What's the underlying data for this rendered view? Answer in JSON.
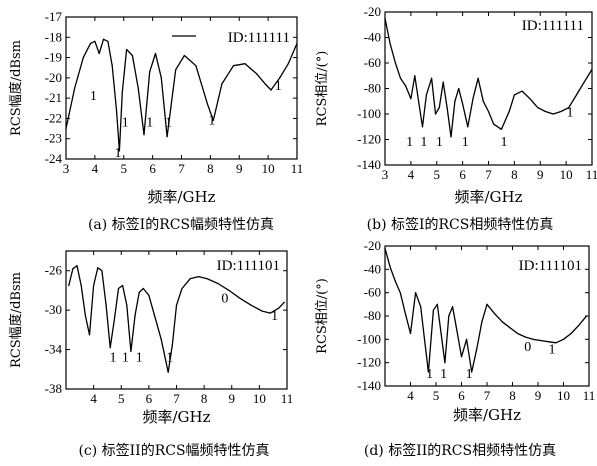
{
  "chart_data": [
    {
      "type": "line",
      "caption": "(a) 标签I的RCS幅频特性仿真",
      "id_label": "ID:111111",
      "legend_line": true,
      "xlabel": "频率/GHz",
      "ylabel": "RCS幅度/dBsm",
      "xlim": [
        3,
        11
      ],
      "ylim": [
        -24,
        -17
      ],
      "xticks": [
        "3",
        "4",
        "5",
        "6",
        "7",
        "8",
        "9",
        "10",
        "11"
      ],
      "yticks": [
        "-24",
        "-23",
        "-22",
        "-21",
        "-20",
        "-19",
        "-18",
        "-17"
      ],
      "series": [
        {
          "x": [
            3.0,
            3.3,
            3.6,
            3.85,
            4.0,
            4.15,
            4.3,
            4.45,
            4.6,
            4.75,
            4.85,
            4.95,
            5.1,
            5.3,
            5.5,
            5.7,
            5.9,
            6.1,
            6.3,
            6.5,
            6.8,
            7.1,
            7.5,
            7.9,
            8.1,
            8.4,
            8.8,
            9.2,
            9.6,
            9.9,
            10.1,
            10.4,
            10.7,
            11.0
          ],
          "y": [
            -22.5,
            -20.5,
            -19.0,
            -18.3,
            -18.2,
            -18.8,
            -18.1,
            -18.2,
            -19.4,
            -21.6,
            -23.6,
            -20.7,
            -18.6,
            -18.9,
            -20.5,
            -22.8,
            -19.7,
            -18.8,
            -20.0,
            -22.9,
            -19.6,
            -18.9,
            -19.4,
            -21.3,
            -22.1,
            -20.3,
            -19.4,
            -19.3,
            -19.8,
            -20.3,
            -20.6,
            -20.0,
            -19.3,
            -18.3
          ]
        }
      ],
      "annotations": [
        {
          "text": "1",
          "x": 3.95,
          "y": -21.1
        },
        {
          "text": "1",
          "x": 4.8,
          "y": -23.9
        },
        {
          "text": "1",
          "x": 5.05,
          "y": -22.4
        },
        {
          "text": "1",
          "x": 5.9,
          "y": -22.4
        },
        {
          "text": "1",
          "x": 6.55,
          "y": -22.4
        },
        {
          "text": "1",
          "x": 8.05,
          "y": -22.3
        },
        {
          "text": "1",
          "x": 10.35,
          "y": -20.6
        }
      ]
    },
    {
      "type": "line",
      "caption": "(b) 标签I的RCS相频特性仿真",
      "id_label": "ID:111111",
      "legend_line": false,
      "xlabel": "频率/GHz",
      "ylabel": "RCS相位/(°)",
      "xlim": [
        3,
        11
      ],
      "ylim": [
        -140,
        -20
      ],
      "xticks": [
        "3",
        "4",
        "5",
        "6",
        "7",
        "8",
        "9",
        "10",
        "11"
      ],
      "yticks": [
        "-140",
        "-120",
        "-100",
        "-80",
        "-60",
        "-40",
        "-20"
      ],
      "series": [
        {
          "x": [
            3.0,
            3.2,
            3.4,
            3.6,
            3.8,
            4.0,
            4.15,
            4.3,
            4.45,
            4.6,
            4.8,
            4.95,
            5.1,
            5.25,
            5.4,
            5.55,
            5.7,
            5.85,
            6.0,
            6.2,
            6.4,
            6.6,
            6.8,
            7.0,
            7.2,
            7.5,
            7.8,
            8.0,
            8.3,
            8.6,
            8.9,
            9.2,
            9.5,
            9.8,
            10.1,
            10.4,
            10.7,
            11.0
          ],
          "y": [
            -25,
            -45,
            -60,
            -72,
            -78,
            -88,
            -70,
            -90,
            -110,
            -85,
            -72,
            -100,
            -95,
            -75,
            -95,
            -118,
            -90,
            -80,
            -92,
            -110,
            -88,
            -72,
            -90,
            -98,
            -108,
            -112,
            -98,
            -85,
            -82,
            -88,
            -95,
            -98,
            -100,
            -98,
            -95,
            -85,
            -75,
            -65
          ]
        }
      ],
      "annotations": [
        {
          "text": "1",
          "x": 3.95,
          "y": -125
        },
        {
          "text": "1",
          "x": 4.5,
          "y": -125
        },
        {
          "text": "1",
          "x": 5.1,
          "y": -125
        },
        {
          "text": "1",
          "x": 6.1,
          "y": -125
        },
        {
          "text": "1",
          "x": 7.6,
          "y": -125
        },
        {
          "text": "1",
          "x": 10.15,
          "y": -102
        }
      ]
    },
    {
      "type": "line",
      "caption": "(c) 标签II的RCS幅频特性仿真",
      "id_label": "ID:111101",
      "legend_line": false,
      "xlabel": "频率/GHz",
      "ylabel": "RCS幅度/dBsm",
      "xlim": [
        3,
        11
      ],
      "ylim": [
        -38,
        -24
      ],
      "xticks": [
        "4",
        "5",
        "6",
        "7",
        "8",
        "9",
        "10",
        "11"
      ],
      "yticks": [
        "-26",
        "-30",
        "-34",
        "-38"
      ],
      "series": [
        {
          "x": [
            3.1,
            3.25,
            3.4,
            3.55,
            3.7,
            3.85,
            4.0,
            4.15,
            4.3,
            4.45,
            4.6,
            4.75,
            4.9,
            5.05,
            5.2,
            5.35,
            5.5,
            5.65,
            5.8,
            6.0,
            6.2,
            6.45,
            6.7,
            6.85,
            7.0,
            7.2,
            7.5,
            7.8,
            8.1,
            8.5,
            8.9,
            9.3,
            9.7,
            10.1,
            10.4,
            10.7,
            10.9
          ],
          "y": [
            -27.5,
            -25.8,
            -25.5,
            -27.5,
            -30.5,
            -32.5,
            -27.5,
            -25.7,
            -26.0,
            -29.5,
            -33.8,
            -31.0,
            -27.8,
            -27.5,
            -29.5,
            -34.2,
            -30.5,
            -28.2,
            -27.8,
            -28.5,
            -30.5,
            -33.0,
            -36.3,
            -33.5,
            -29.5,
            -27.8,
            -26.8,
            -26.6,
            -26.8,
            -27.3,
            -28.0,
            -28.8,
            -29.5,
            -30.1,
            -30.3,
            -29.8,
            -29.2
          ]
        }
      ],
      "annotations": [
        {
          "text": "1",
          "x": 4.7,
          "y": -35.2
        },
        {
          "text": "1",
          "x": 5.15,
          "y": -35.2
        },
        {
          "text": "1",
          "x": 5.65,
          "y": -35.2
        },
        {
          "text": "1",
          "x": 6.75,
          "y": -35.2
        },
        {
          "text": "0",
          "x": 8.75,
          "y": -29.2
        },
        {
          "text": "1",
          "x": 10.55,
          "y": -31.0
        }
      ]
    },
    {
      "type": "line",
      "caption": "(d) 标签II的RCS相频特性仿真",
      "id_label": "ID:111101",
      "legend_line": false,
      "xlabel": "频率/GHz",
      "ylabel": "RCS相位/(°)",
      "xlim": [
        3,
        11
      ],
      "ylim": [
        -140,
        -20
      ],
      "xticks": [
        "4",
        "5",
        "6",
        "7",
        "8",
        "9",
        "10",
        "11"
      ],
      "yticks": [
        "-20",
        "-40",
        "-60",
        "-80",
        "-100",
        "-120",
        "-140"
      ],
      "series": [
        {
          "x": [
            3.0,
            3.2,
            3.4,
            3.6,
            3.8,
            4.0,
            4.2,
            4.4,
            4.55,
            4.7,
            4.9,
            5.05,
            5.2,
            5.35,
            5.5,
            5.65,
            5.8,
            6.0,
            6.2,
            6.4,
            6.6,
            6.8,
            7.0,
            7.3,
            7.6,
            7.9,
            8.2,
            8.5,
            8.8,
            9.1,
            9.4,
            9.7,
            10.0,
            10.3,
            10.6,
            10.9
          ],
          "y": [
            -22,
            -38,
            -50,
            -60,
            -78,
            -95,
            -60,
            -72,
            -100,
            -128,
            -75,
            -70,
            -95,
            -120,
            -80,
            -72,
            -90,
            -115,
            -100,
            -128,
            -108,
            -85,
            -70,
            -78,
            -85,
            -90,
            -95,
            -98,
            -100,
            -101,
            -102,
            -103,
            -100,
            -95,
            -88,
            -80
          ]
        }
      ],
      "annotations": [
        {
          "text": "1",
          "x": 4.75,
          "y": -133
        },
        {
          "text": "1",
          "x": 5.3,
          "y": -133
        },
        {
          "text": "1",
          "x": 6.3,
          "y": -133
        },
        {
          "text": "0",
          "x": 8.6,
          "y": -110
        },
        {
          "text": "1",
          "x": 9.55,
          "y": -112
        }
      ]
    }
  ]
}
